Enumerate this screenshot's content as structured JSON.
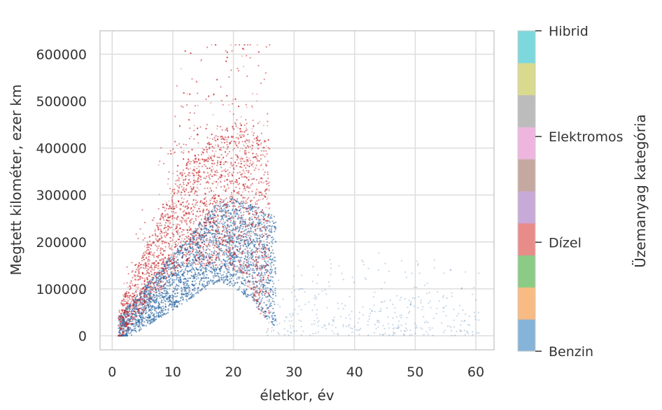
{
  "chart_data": {
    "type": "scatter",
    "title": "",
    "xlabel": "életkor, év",
    "ylabel": "Megtett kilométer, ezer km",
    "xlim": [
      -2,
      63
    ],
    "ylim": [
      -30000,
      650000
    ],
    "x_ticks": [
      0,
      10,
      20,
      30,
      40,
      50,
      60
    ],
    "y_ticks": [
      0,
      100000,
      200000,
      300000,
      400000,
      500000,
      600000
    ],
    "grid": true,
    "series": [
      {
        "name": "Benzin",
        "color": "#1f5f9e",
        "description_points": [
          [
            1,
            20000
          ],
          [
            2,
            40000
          ],
          [
            3,
            60000
          ],
          [
            4,
            80000
          ],
          [
            5,
            100000
          ],
          [
            6,
            110000
          ],
          [
            8,
            120000
          ],
          [
            10,
            130000
          ],
          [
            12,
            145000
          ],
          [
            15,
            160000
          ],
          [
            18,
            170000
          ],
          [
            20,
            175000
          ],
          [
            22,
            160000
          ],
          [
            25,
            120000
          ],
          [
            28,
            90000
          ],
          [
            32,
            70000
          ],
          [
            38,
            60000
          ],
          [
            45,
            50000
          ],
          [
            55,
            60000
          ],
          [
            60,
            40000
          ]
        ]
      },
      {
        "name": "Dízel",
        "color": "#c62a2f",
        "description_points": [
          [
            1,
            30000
          ],
          [
            2,
            60000
          ],
          [
            3,
            100000
          ],
          [
            5,
            160000
          ],
          [
            7,
            210000
          ],
          [
            9,
            250000
          ],
          [
            11,
            270000
          ],
          [
            13,
            290000
          ],
          [
            15,
            280000
          ],
          [
            17,
            300000
          ],
          [
            19,
            320000
          ],
          [
            20,
            300000
          ],
          [
            22,
            250000
          ],
          [
            24,
            200000
          ],
          [
            26,
            170000
          ],
          [
            10,
            450000
          ],
          [
            15,
            500000
          ],
          [
            20,
            550000
          ],
          [
            18,
            600000
          ]
        ]
      }
    ],
    "colorbar": {
      "label": "Üzemanyag kategória",
      "colors": [
        "#86b3d8",
        "#f8bb83",
        "#8ccb86",
        "#e88c8a",
        "#c8aad8",
        "#c5a9a0",
        "#eeb6de",
        "#bcbcbc",
        "#dada8e",
        "#7dd8dd"
      ],
      "tick_labels": [
        "Benzin",
        "Dízel",
        "Elektromos",
        "Hibrid"
      ],
      "tick_positions": [
        0,
        3.4,
        6.7,
        10
      ]
    }
  }
}
